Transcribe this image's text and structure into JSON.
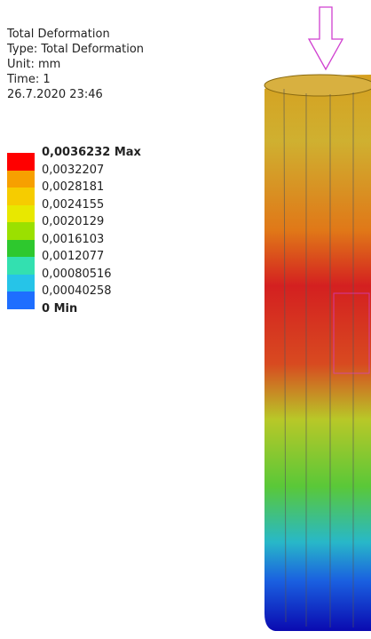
{
  "info": {
    "title": "Total Deformation",
    "type": "Type: Total Deformation",
    "unit": "Unit: mm",
    "time": "Time: 1",
    "date": "26.7.2020 23:46"
  },
  "legend": {
    "labels": [
      "0,0036232 Max",
      "0,0032207",
      "0,0028181",
      "0,0024155",
      "0,0020129",
      "0,0016103",
      "0,0012077",
      "0,00080516",
      "0,00040258",
      "0 Min"
    ],
    "colors": [
      "#ff0000",
      "#f7a000",
      "#f6cc00",
      "#e8e800",
      "#9be000",
      "#2ec82e",
      "#33e0b0",
      "#26c4e8",
      "#1e6eff"
    ]
  }
}
